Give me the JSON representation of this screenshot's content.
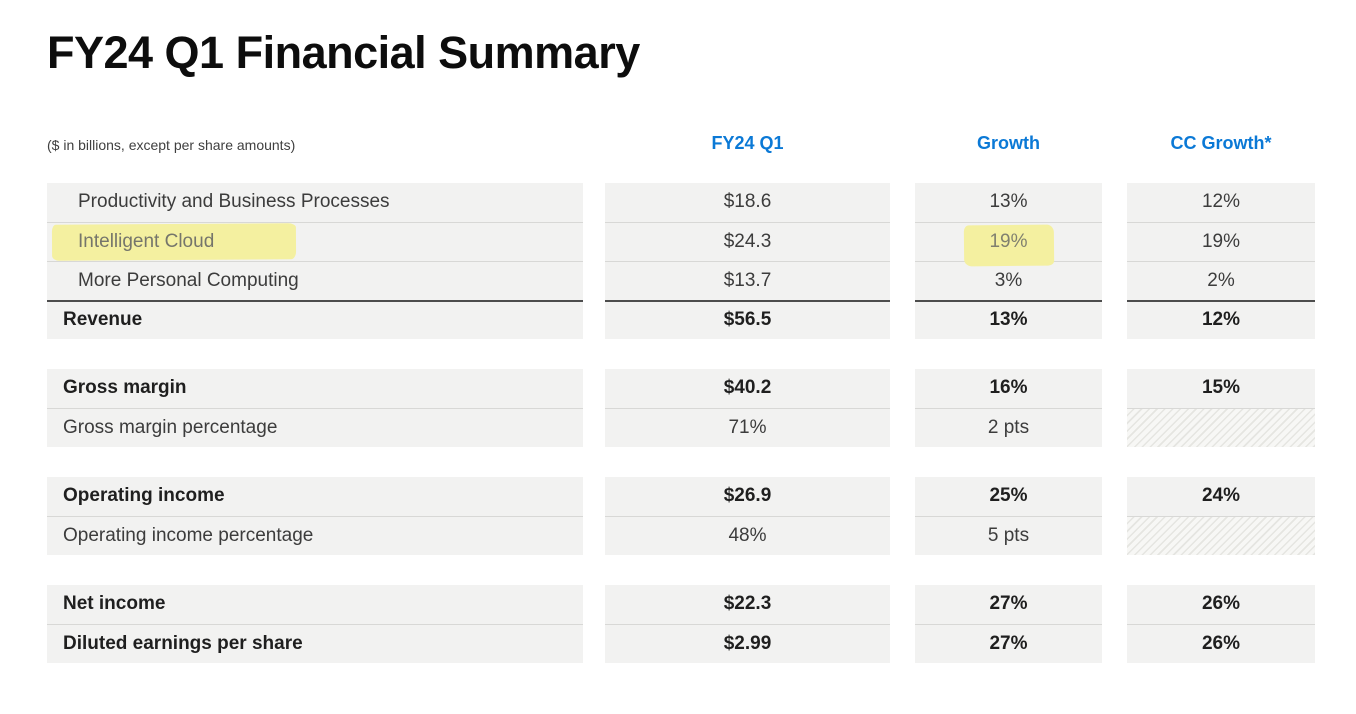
{
  "slide": {
    "title": "FY24 Q1 Financial Summary",
    "note": "($ in billions, except per share amounts)",
    "columns": [
      "FY24 Q1",
      "Growth",
      "CC Growth*"
    ],
    "sections": [
      {
        "rows": [
          {
            "label": "Productivity and Business Processes",
            "values": [
              "$18.6",
              "13%",
              "12%"
            ],
            "indent": true
          },
          {
            "label": "Intelligent Cloud",
            "values": [
              "$24.3",
              "19%",
              "19%"
            ],
            "indent": true,
            "labelHighlight": true,
            "valueHighlight": [
              1
            ]
          },
          {
            "label": "More Personal Computing",
            "values": [
              "$13.7",
              "3%",
              "2%"
            ],
            "indent": true
          },
          {
            "label": "Revenue",
            "values": [
              "$56.5",
              "13%",
              "12%"
            ],
            "bold": true,
            "topRule": "dark"
          }
        ]
      },
      {
        "rows": [
          {
            "label": "Gross margin",
            "values": [
              "$40.2",
              "16%",
              "15%"
            ],
            "bold": true
          },
          {
            "label": "Gross margin percentage",
            "values": [
              "71%",
              "2 pts",
              null
            ],
            "hatch": [
              2
            ]
          }
        ]
      },
      {
        "rows": [
          {
            "label": "Operating income",
            "values": [
              "$26.9",
              "25%",
              "24%"
            ],
            "bold": true
          },
          {
            "label": "Operating income percentage",
            "values": [
              "48%",
              "5 pts",
              null
            ],
            "hatch": [
              2
            ]
          }
        ]
      },
      {
        "rows": [
          {
            "label": "Net income",
            "values": [
              "$22.3",
              "27%",
              "26%"
            ],
            "bold": true
          },
          {
            "label": "Diluted earnings per share",
            "values": [
              "$2.99",
              "27%",
              "26%"
            ],
            "bold": true
          }
        ]
      }
    ]
  },
  "colors": {
    "header_blue": "#0b79d6",
    "row_background": "#f2f2f1",
    "row_separator": "#d8d8d6",
    "subtotal_rule": "#4d4d4d",
    "highlight_yellow": "#f4f0a0",
    "body_text": "#3c3c3c",
    "title_text": "#0d0d0d"
  }
}
